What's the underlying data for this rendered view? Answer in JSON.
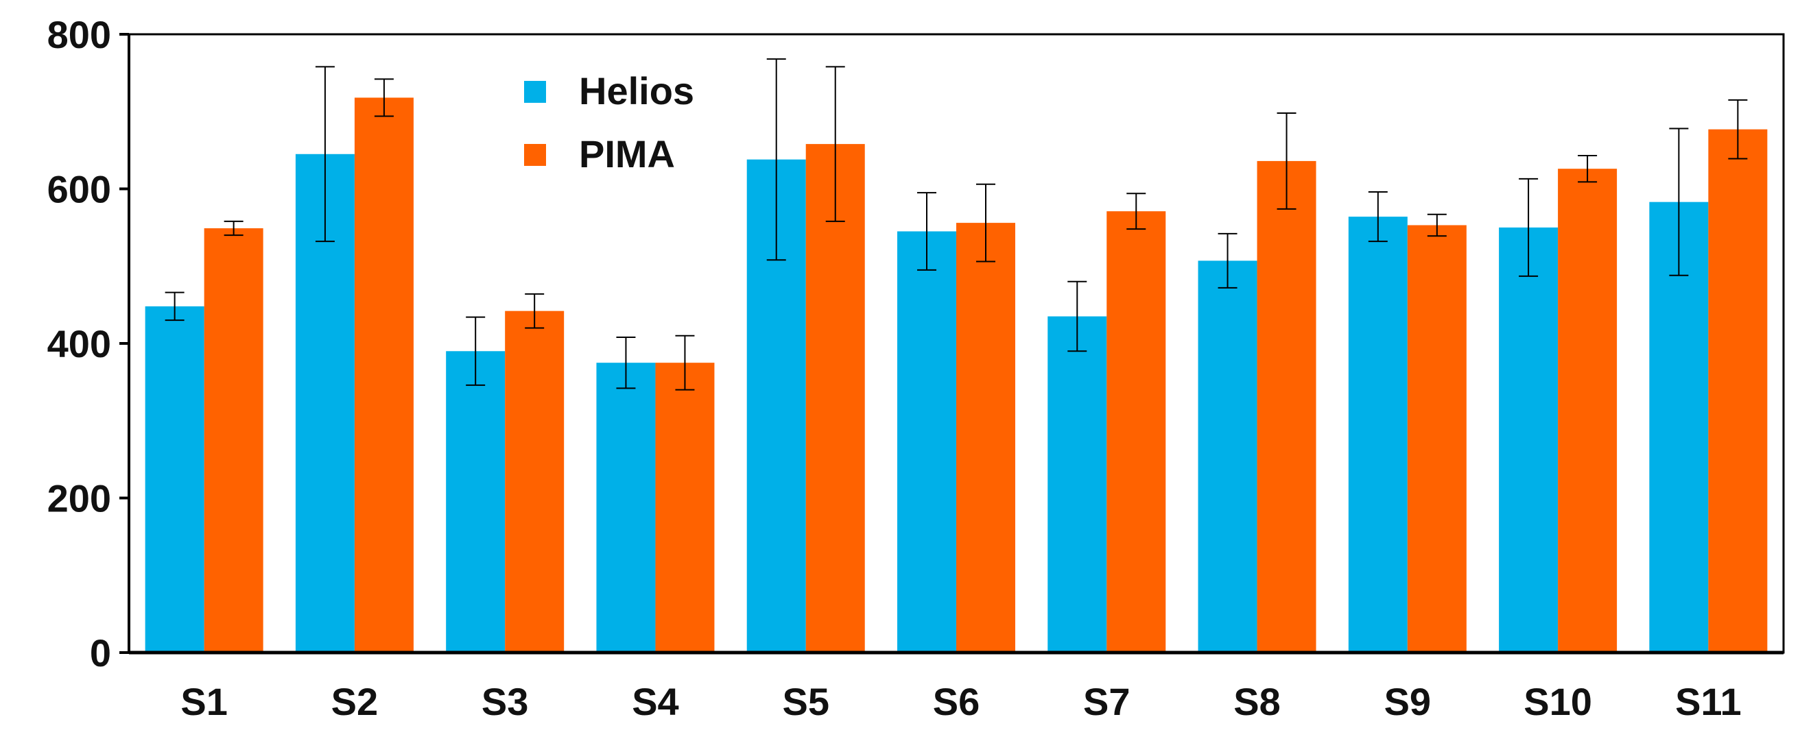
{
  "chart_data": {
    "type": "bar",
    "title": "",
    "xlabel": "",
    "ylabel": "",
    "ylim": [
      0,
      800
    ],
    "yticks": [
      0,
      200,
      400,
      600,
      800
    ],
    "categories": [
      "S1",
      "S2",
      "S3",
      "S4",
      "S5",
      "S6",
      "S7",
      "S8",
      "S9",
      "S10",
      "S11"
    ],
    "series": [
      {
        "name": "Helios",
        "color": "#00b0e8",
        "values": [
          448,
          645,
          390,
          375,
          638,
          545,
          435,
          507,
          564,
          550,
          583
        ],
        "errors": [
          18,
          113,
          44,
          33,
          130,
          50,
          45,
          35,
          32,
          63,
          95
        ]
      },
      {
        "name": "PIMA",
        "color": "#ff6200",
        "values": [
          549,
          718,
          442,
          375,
          658,
          556,
          571,
          636,
          553,
          626,
          677
        ],
        "errors": [
          9,
          24,
          22,
          35,
          100,
          50,
          23,
          62,
          14,
          17,
          38
        ]
      }
    ],
    "legend": "top-center",
    "grid": false
  }
}
